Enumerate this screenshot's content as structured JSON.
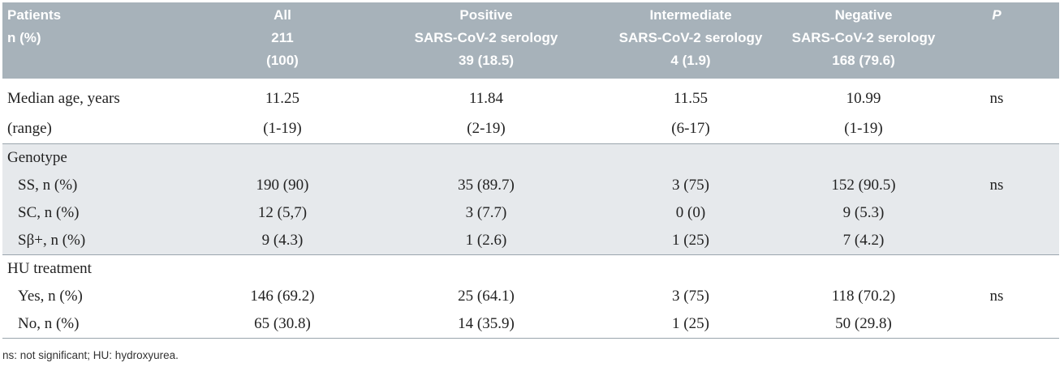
{
  "header": {
    "columns": [
      [
        "Patients",
        "n (%)"
      ],
      [
        "All",
        "211",
        "(100)"
      ],
      [
        "Positive",
        "SARS-CoV-2 serology",
        "39 (18.5)"
      ],
      [
        "Intermediate",
        "SARS-CoV-2 serology",
        "4 (1.9)"
      ],
      [
        "Negative",
        "SARS-CoV-2 serology",
        "168 (79.6)"
      ],
      [
        "P"
      ]
    ]
  },
  "sections": [
    {
      "rows": [
        [
          "Median age, years",
          "11.25",
          "11.84",
          "11.55",
          "10.99",
          "ns"
        ],
        [
          "(range)",
          "(1-19)",
          "(2-19)",
          "(6-17)",
          "(1-19)"
        ]
      ]
    },
    {
      "rows": [
        [
          "Genotype"
        ],
        [
          "SS, n (%)",
          "190 (90)",
          "35 (89.7)",
          "3 (75)",
          "152 (90.5)",
          "ns"
        ],
        [
          "SC, n (%)",
          "12 (5,7)",
          "3 (7.7)",
          "0 (0)",
          "9 (5.3)"
        ],
        [
          "Sβ+, n (%)",
          "9 (4.3)",
          "1 (2.6)",
          "1 (25)",
          "7 (4.2)"
        ]
      ]
    },
    {
      "rows": [
        [
          "HU treatment"
        ],
        [
          "Yes, n (%)",
          "146 (69.2)",
          "25 (64.1)",
          "3 (75)",
          "118 (70.2)",
          "ns"
        ],
        [
          "No, n (%)",
          "65 (30.8)",
          "14 (35.9)",
          "1 (25)",
          "50 (29.8)"
        ]
      ]
    }
  ],
  "footnote": "ns: not significant; HU: hydroxyurea."
}
